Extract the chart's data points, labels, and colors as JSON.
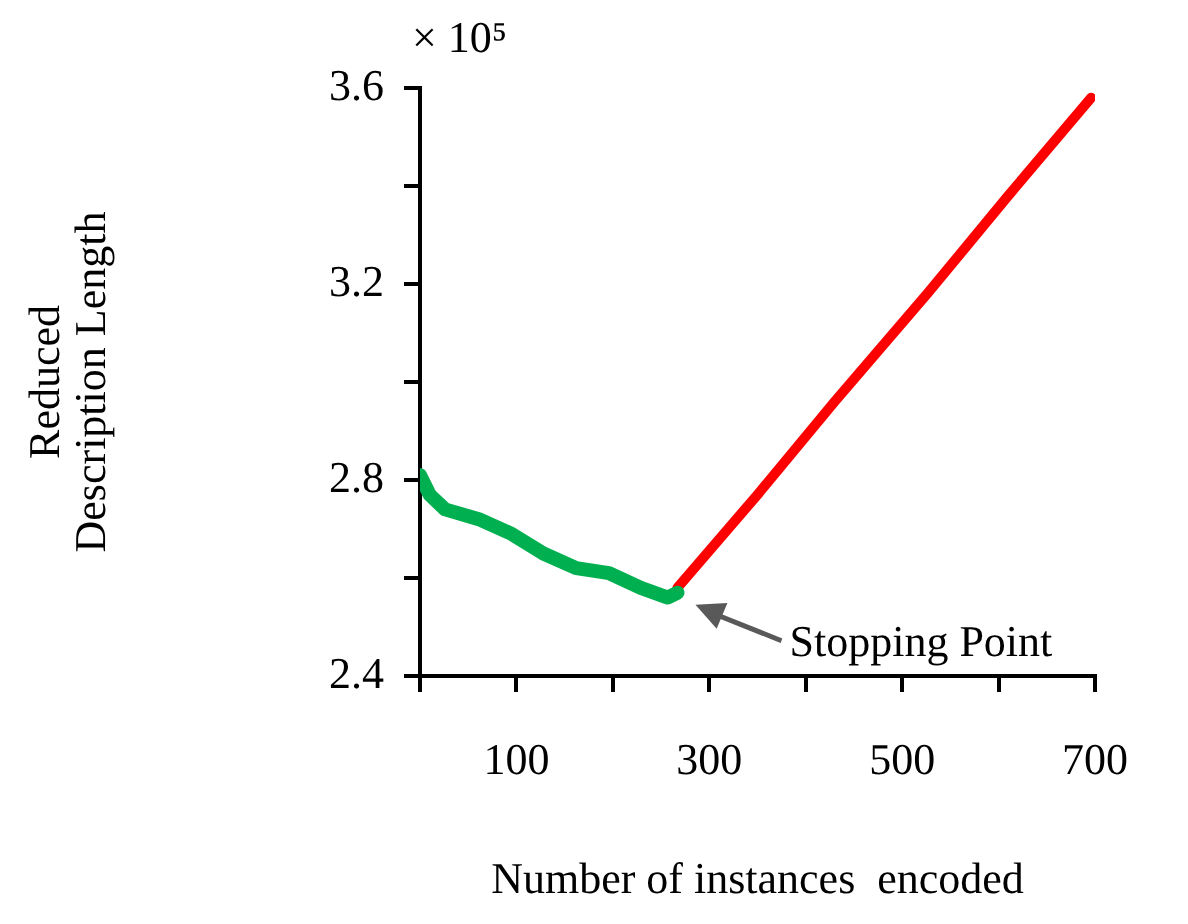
{
  "chart_data": {
    "type": "line",
    "xlabel": "Number of instances  encoded",
    "ylabel": "Reduced Description Length",
    "xlim": [
      0,
      700
    ],
    "xticks": [
      {
        "value": 0,
        "label": null
      },
      100,
      {
        "value": 200,
        "label": null
      },
      300,
      {
        "value": 400,
        "label": null
      },
      500,
      {
        "value": 600,
        "label": null
      },
      700
    ],
    "ylim": [
      2.4,
      3.6
    ],
    "yticks": [
      2.4,
      {
        "value": 2.6,
        "label": null
      },
      2.8,
      {
        "value": 3.0,
        "label": null
      },
      3.2,
      {
        "value": 3.4,
        "label": null
      },
      3.6
    ],
    "grid": false,
    "legend": false,
    "marker": "none",
    "line_style": "solid",
    "series": [
      {
        "color": "#00b050",
        "x": [
          0,
          10,
          26,
          61,
          95,
          128,
          162,
          196,
          229,
          257,
          267
        ],
        "values": [
          2.81,
          2.77,
          2.74,
          2.72,
          2.69,
          2.65,
          2.62,
          2.61,
          2.58,
          2.56,
          2.57
        ]
      },
      {
        "color": "#ff0000",
        "x": [
          267,
          350,
          430,
          526,
          610,
          696
        ],
        "values": [
          2.58,
          2.77,
          2.96,
          3.18,
          3.38,
          3.58
        ]
      }
    ],
    "annotations": [
      "× 10⁵",
      {
        "text": "Stopping Point",
        "x": 267,
        "y": 2.57
      }
    ]
  }
}
